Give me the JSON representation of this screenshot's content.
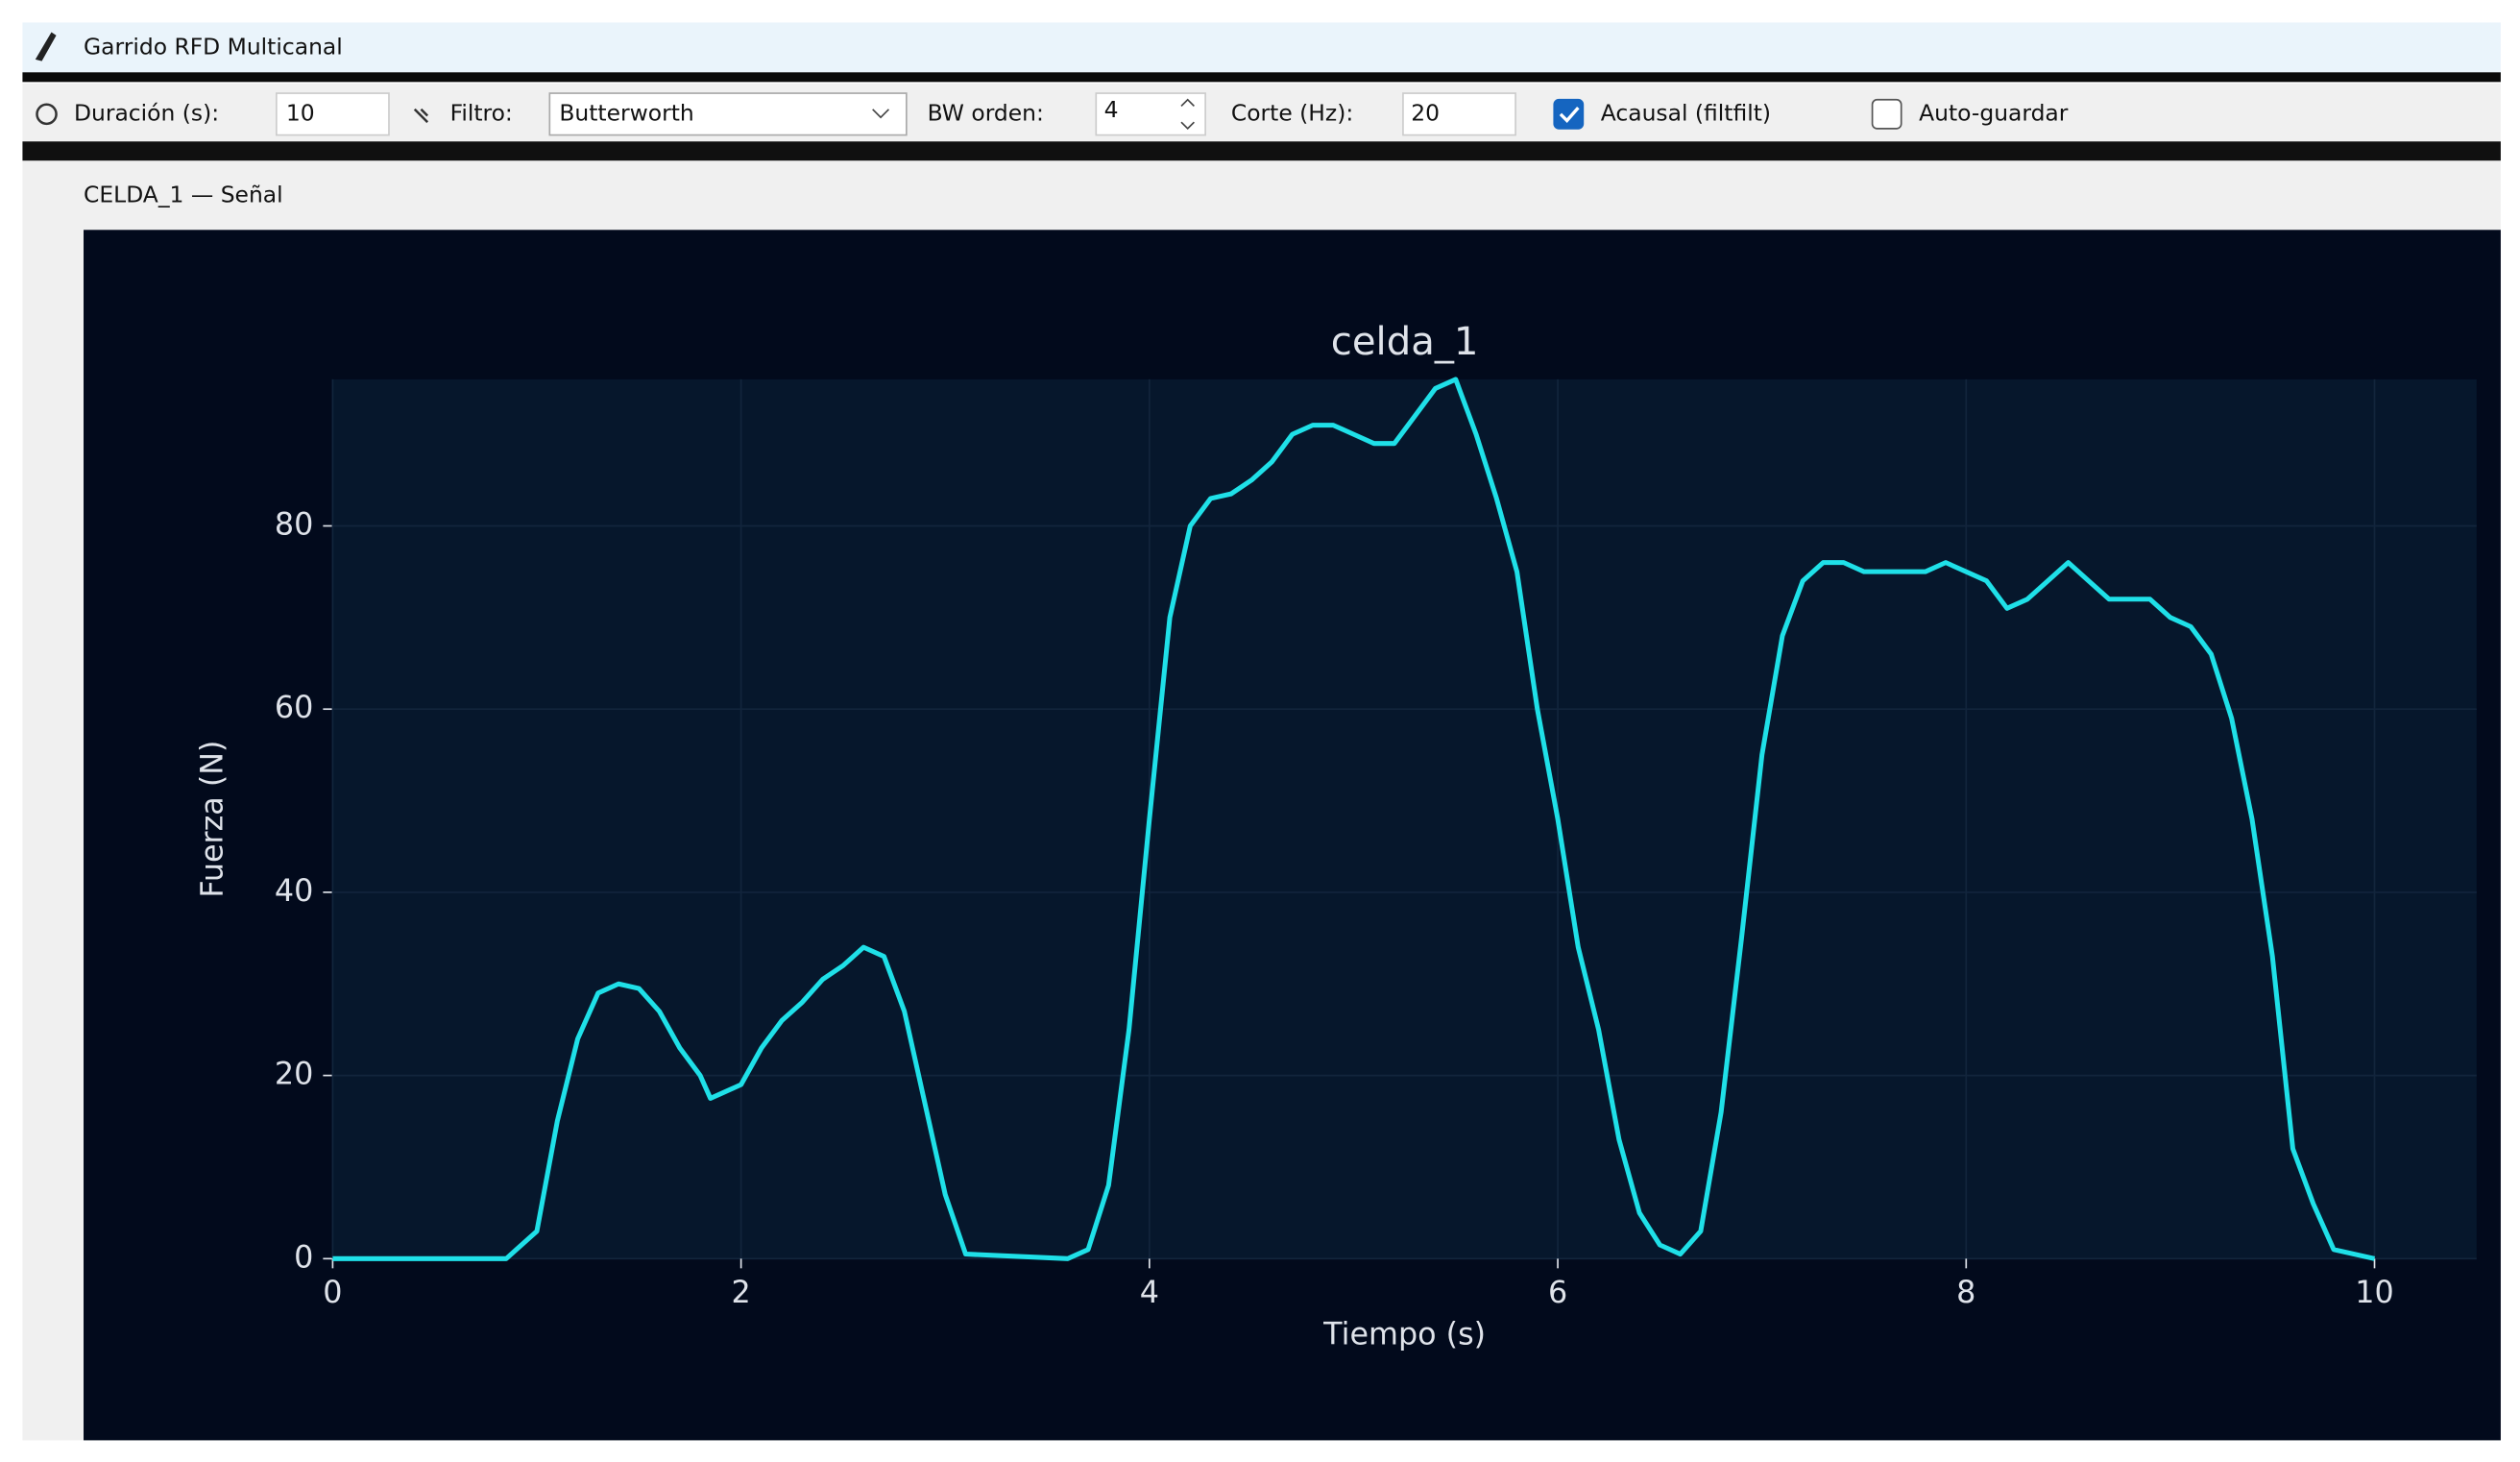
{
  "window": {
    "title": "Garrido RFD Multicanal"
  },
  "toolbar": {
    "duration_label": "Duración (s):",
    "duration_value": "10",
    "filter_label": "Filtro:",
    "filter_value": "Butterworth",
    "order_label": "BW orden:",
    "order_value": "4",
    "cutoff_label": "Corte (Hz):",
    "cutoff_value": "20",
    "acausal_label": "Acausal (filtfilt)",
    "acausal_checked": true,
    "autosave_label": "Auto-guardar",
    "autosave_checked": false
  },
  "panel": {
    "title": "CELDA_1 — Señal"
  },
  "chart_data": {
    "type": "line",
    "title": "celda_1",
    "x_label": "Tiempo (s)",
    "y_label": "Fuerza (N)",
    "x": [
      0,
      0.85,
      0.9,
      1.0,
      1.1,
      1.2,
      1.3,
      1.4,
      1.5,
      1.6,
      1.7,
      1.8,
      1.85,
      1.9,
      2.0,
      2.1,
      2.2,
      2.3,
      2.4,
      2.5,
      2.6,
      2.7,
      2.8,
      2.9,
      3.0,
      3.1,
      3.6,
      3.7,
      3.8,
      3.9,
      4.0,
      4.1,
      4.2,
      4.3,
      4.4,
      4.5,
      4.6,
      4.7,
      4.8,
      4.9,
      5.0,
      5.1,
      5.2,
      5.3,
      5.4,
      5.5,
      5.6,
      5.7,
      5.8,
      5.9,
      6.0,
      6.1,
      6.2,
      6.3,
      6.4,
      6.5,
      6.6,
      6.7,
      6.8,
      6.9,
      7.0,
      7.1,
      7.2,
      7.3,
      7.4,
      7.5,
      7.6,
      7.7,
      7.8,
      7.9,
      8.0,
      8.1,
      8.2,
      8.3,
      8.4,
      8.5,
      8.6,
      8.7,
      8.8,
      8.9,
      9.0,
      9.1,
      9.2,
      9.3,
      9.4,
      9.5,
      9.6,
      9.7,
      9.8,
      9.9,
      10.0
    ],
    "series": [
      {
        "name": "celda_1",
        "color": "#1fe0e8",
        "values": [
          0,
          0,
          1,
          3,
          15,
          24,
          29,
          30,
          29.5,
          27,
          23,
          20,
          17.5,
          18,
          19,
          23,
          26,
          28,
          30.5,
          32,
          34,
          33,
          27,
          17,
          7,
          0.5,
          0,
          1,
          8,
          25,
          48,
          70,
          80,
          83,
          83.5,
          85,
          87,
          90,
          91,
          91,
          90,
          89,
          89,
          92,
          95,
          96,
          90,
          83,
          75,
          60,
          48,
          34,
          25,
          13,
          5,
          1.5,
          0.5,
          3,
          16,
          35,
          55,
          68,
          74,
          76,
          76,
          75,
          75,
          75,
          75,
          76,
          75,
          74,
          71,
          72,
          74,
          76,
          74,
          72,
          72,
          72,
          70,
          69,
          66,
          59,
          48,
          33,
          12,
          6,
          1,
          0.5,
          0
        ]
      }
    ],
    "xlim": [
      0,
      10.5
    ],
    "ylim": [
      0,
      96
    ],
    "xticks": [
      0,
      2,
      4,
      6,
      8,
      10
    ],
    "yticks": [
      0,
      20,
      40,
      60,
      80
    ],
    "grid": true
  }
}
